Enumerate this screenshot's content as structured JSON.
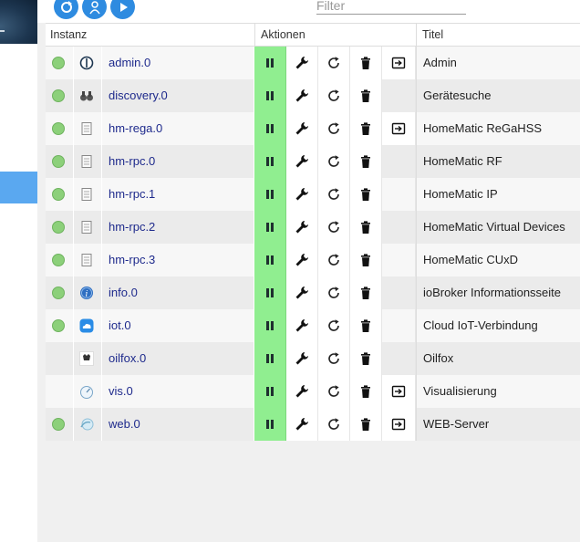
{
  "toolbar": {
    "buttons": [
      "refresh-icon",
      "expert-mode-icon",
      "play-icon"
    ],
    "filter_placeholder": "Filter"
  },
  "table": {
    "headers": {
      "instance": "Instanz",
      "actions": "Aktionen",
      "title": "Titel"
    },
    "rows": [
      {
        "name": "admin.0",
        "title": "Admin",
        "status": "green",
        "icon": "admin-logo-icon",
        "link": true
      },
      {
        "name": "discovery.0",
        "title": "Gerätesuche",
        "status": "green",
        "icon": "binoculars-icon",
        "link": false
      },
      {
        "name": "hm-rega.0",
        "title": "HomeMatic ReGaHSS",
        "status": "green",
        "icon": "homematic-device-icon",
        "link": true
      },
      {
        "name": "hm-rpc.0",
        "title": "HomeMatic RF",
        "status": "green",
        "icon": "homematic-device-icon",
        "link": false
      },
      {
        "name": "hm-rpc.1",
        "title": "HomeMatic IP",
        "status": "green",
        "icon": "homematic-device-icon",
        "link": false
      },
      {
        "name": "hm-rpc.2",
        "title": "HomeMatic Virtual Devices",
        "status": "green",
        "icon": "homematic-device-icon",
        "link": false
      },
      {
        "name": "hm-rpc.3",
        "title": "HomeMatic CUxD",
        "status": "green",
        "icon": "homematic-device-icon",
        "link": false
      },
      {
        "name": "info.0",
        "title": "ioBroker Informationsseite",
        "status": "green",
        "icon": "info-icon",
        "link": false
      },
      {
        "name": "iot.0",
        "title": "Cloud IoT-Verbindung",
        "status": "green",
        "icon": "cloud-icon",
        "link": false
      },
      {
        "name": "oilfox.0",
        "title": "Oilfox",
        "status": "none",
        "icon": "oilfox-logo-icon",
        "link": false
      },
      {
        "name": "vis.0",
        "title": "Visualisierung",
        "status": "none",
        "icon": "gauge-icon",
        "link": true
      },
      {
        "name": "web.0",
        "title": "WEB-Server",
        "status": "green",
        "icon": "web-globe-icon",
        "link": true
      }
    ]
  },
  "colors": {
    "accent": "#2e8be0",
    "pause_bg": "#90ee90",
    "status_green": "#8cd07a",
    "name_link": "#1e2a8c"
  }
}
